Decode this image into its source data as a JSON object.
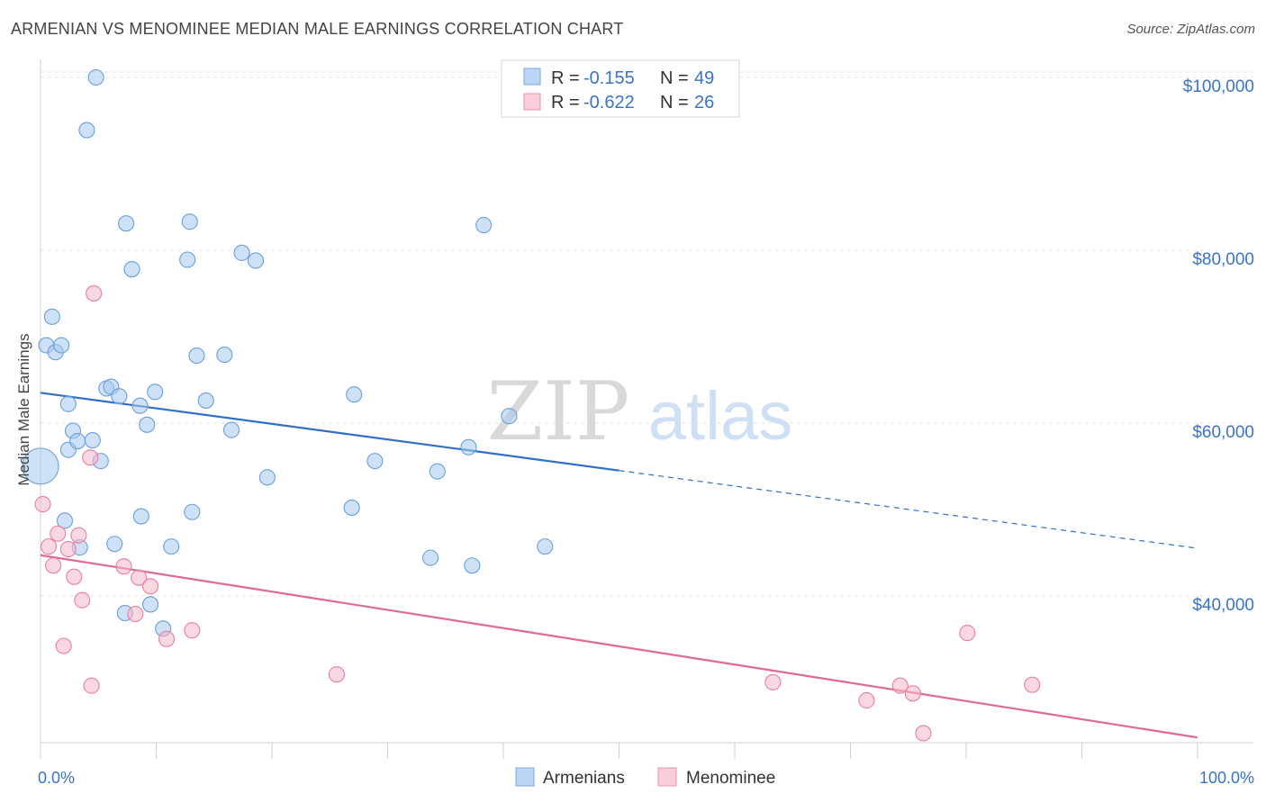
{
  "title": "ARMENIAN VS MENOMINEE MEDIAN MALE EARNINGS CORRELATION CHART",
  "source": "Source: ZipAtlas.com",
  "watermark": {
    "zip": "ZIP",
    "atlas": "atlas"
  },
  "legend": {
    "rows": [
      {
        "r_label": "R =",
        "r_value": "-0.155",
        "n_label": "N =",
        "n_value": "49",
        "color": "#a8c8f0"
      },
      {
        "r_label": "R =",
        "r_value": "-0.622",
        "n_label": "N =",
        "n_value": "26",
        "color": "#f5b8c8"
      }
    ]
  },
  "bottom_legend": [
    "Armenians",
    "Menominee"
  ],
  "chart_data": {
    "type": "scatter",
    "title": "ARMENIAN VS MENOMINEE MEDIAN MALE EARNINGS CORRELATION CHART",
    "xlabel": "",
    "ylabel": "Median Male Earnings",
    "xlim": [
      0,
      100
    ],
    "ylim": [
      23000,
      102500
    ],
    "x_tick_labels": [
      "0.0%",
      "100.0%"
    ],
    "y_ticks": [
      40000,
      60000,
      80000,
      100000
    ],
    "y_tick_labels": [
      "$40,000",
      "$60,000",
      "$80,000",
      "$100,000"
    ],
    "grid": true,
    "legend_position": "top-center",
    "series": [
      {
        "name": "Armenians",
        "color": "#a8c8f0",
        "stroke": "#6a9fd8",
        "trend": {
          "x": [
            0,
            50
          ],
          "y": [
            63500,
            54500
          ],
          "dashed_to": [
            100,
            45500
          ],
          "color": "#2f6fc8"
        },
        "points": [
          {
            "x": 0.0,
            "y": 55000,
            "big": true
          },
          {
            "x": 0.5,
            "y": 69000
          },
          {
            "x": 1.0,
            "y": 72300
          },
          {
            "x": 1.3,
            "y": 68200
          },
          {
            "x": 1.8,
            "y": 69000
          },
          {
            "x": 2.1,
            "y": 48700
          },
          {
            "x": 2.4,
            "y": 62200
          },
          {
            "x": 2.4,
            "y": 56900
          },
          {
            "x": 2.8,
            "y": 59100
          },
          {
            "x": 3.2,
            "y": 57900
          },
          {
            "x": 3.4,
            "y": 45600
          },
          {
            "x": 4.5,
            "y": 58000
          },
          {
            "x": 4.0,
            "y": 93900
          },
          {
            "x": 4.8,
            "y": 100000
          },
          {
            "x": 5.2,
            "y": 55600
          },
          {
            "x": 5.7,
            "y": 64000
          },
          {
            "x": 6.1,
            "y": 64200
          },
          {
            "x": 6.4,
            "y": 46000
          },
          {
            "x": 6.8,
            "y": 63100
          },
          {
            "x": 7.3,
            "y": 38000
          },
          {
            "x": 7.4,
            "y": 83100
          },
          {
            "x": 7.9,
            "y": 77800
          },
          {
            "x": 8.6,
            "y": 62000
          },
          {
            "x": 8.7,
            "y": 49200
          },
          {
            "x": 9.2,
            "y": 59800
          },
          {
            "x": 9.5,
            "y": 39000
          },
          {
            "x": 9.9,
            "y": 63600
          },
          {
            "x": 10.6,
            "y": 36200
          },
          {
            "x": 11.3,
            "y": 45700
          },
          {
            "x": 12.7,
            "y": 78900
          },
          {
            "x": 12.9,
            "y": 83300
          },
          {
            "x": 13.1,
            "y": 49700
          },
          {
            "x": 13.5,
            "y": 67800
          },
          {
            "x": 14.3,
            "y": 62600
          },
          {
            "x": 15.9,
            "y": 67900
          },
          {
            "x": 16.5,
            "y": 59200
          },
          {
            "x": 17.4,
            "y": 79700
          },
          {
            "x": 18.6,
            "y": 78800
          },
          {
            "x": 19.6,
            "y": 53700
          },
          {
            "x": 26.9,
            "y": 50200
          },
          {
            "x": 27.1,
            "y": 63300
          },
          {
            "x": 28.9,
            "y": 55600
          },
          {
            "x": 33.7,
            "y": 44400
          },
          {
            "x": 34.3,
            "y": 54400
          },
          {
            "x": 37.0,
            "y": 57200
          },
          {
            "x": 37.3,
            "y": 43500
          },
          {
            "x": 38.3,
            "y": 82900
          },
          {
            "x": 40.5,
            "y": 60800
          },
          {
            "x": 43.6,
            "y": 45700
          }
        ]
      },
      {
        "name": "Menominee",
        "color": "#f5b8c8",
        "stroke": "#e87fa0",
        "trend": {
          "x": [
            0,
            100
          ],
          "y": [
            44700,
            23600
          ],
          "color": "#e06a94"
        },
        "points": [
          {
            "x": 0.2,
            "y": 50600
          },
          {
            "x": 0.7,
            "y": 45700
          },
          {
            "x": 1.1,
            "y": 43500
          },
          {
            "x": 1.5,
            "y": 47200
          },
          {
            "x": 2.0,
            "y": 34200
          },
          {
            "x": 2.4,
            "y": 45400
          },
          {
            "x": 2.9,
            "y": 42200
          },
          {
            "x": 3.3,
            "y": 47000
          },
          {
            "x": 3.6,
            "y": 39500
          },
          {
            "x": 4.3,
            "y": 56000
          },
          {
            "x": 4.4,
            "y": 29600
          },
          {
            "x": 4.6,
            "y": 75000
          },
          {
            "x": 7.2,
            "y": 43400
          },
          {
            "x": 8.2,
            "y": 37900
          },
          {
            "x": 8.5,
            "y": 42100
          },
          {
            "x": 9.5,
            "y": 41100
          },
          {
            "x": 10.9,
            "y": 35000
          },
          {
            "x": 13.1,
            "y": 36000
          },
          {
            "x": 25.6,
            "y": 30900
          },
          {
            "x": 63.3,
            "y": 30000
          },
          {
            "x": 71.4,
            "y": 27900
          },
          {
            "x": 74.3,
            "y": 29600
          },
          {
            "x": 75.4,
            "y": 28700
          },
          {
            "x": 76.3,
            "y": 24100
          },
          {
            "x": 80.1,
            "y": 35700
          },
          {
            "x": 85.7,
            "y": 29700
          }
        ]
      }
    ]
  }
}
